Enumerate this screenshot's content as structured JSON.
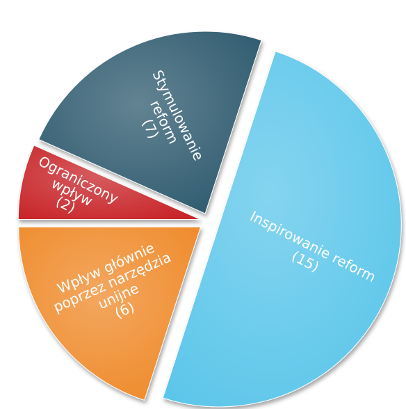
{
  "chart_data": {
    "type": "pie",
    "title": "",
    "slices": [
      {
        "label_lines": [
          "Inspirowanie reform"
        ],
        "value_text": "(15)",
        "value": 15,
        "color": "#5BC6EA"
      },
      {
        "label_lines": [
          "Wpływ głównie",
          "poprzez narzędzia",
          "unijne"
        ],
        "value_text": "(6)",
        "value": 6,
        "color": "#EF8A2A"
      },
      {
        "label_lines": [
          "Ograniczony",
          "wpływ"
        ],
        "value_text": "(2)",
        "value": 2,
        "color": "#C8252B"
      },
      {
        "label_lines": [
          "Stymulowanie",
          "reform"
        ],
        "value_text": "(7)",
        "value": 7,
        "color": "#2F5A6E"
      }
    ]
  }
}
